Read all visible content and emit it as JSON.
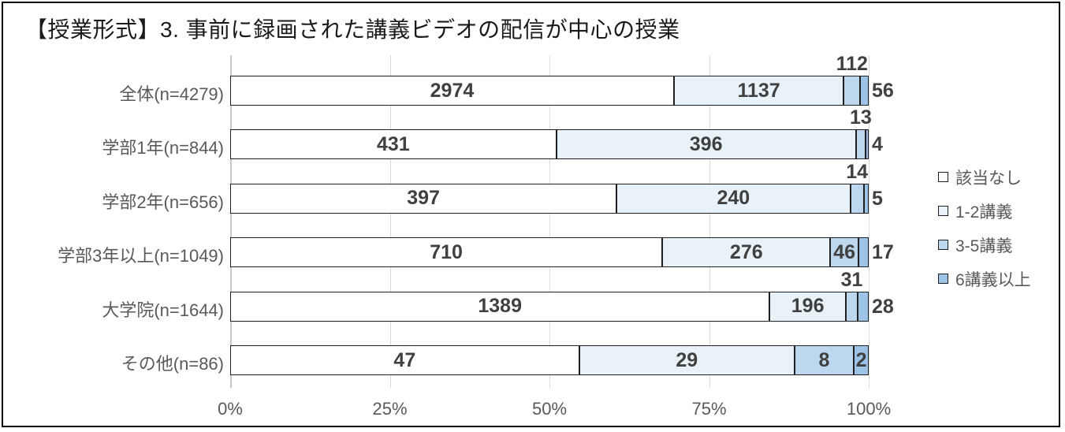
{
  "title": "【授業形式】3. 事前に録画された講義ビデオの配信が中心の授業",
  "chart_data": {
    "type": "bar",
    "variant": "horizontal-stacked-100percent",
    "title": "【授業形式】3. 事前に録画された講義ビデオの配信が中心の授業",
    "categories": [
      "全体(n=4279)",
      "学部1年(n=844)",
      "学部2年(n=656)",
      "学部3年以上(n=1049)",
      "大学院(n=1644)",
      "その他(n=86)"
    ],
    "row_totals": [
      4279,
      844,
      656,
      1049,
      1644,
      86
    ],
    "series": [
      {
        "name": "該当なし",
        "color": "#ffffff",
        "values": [
          2974,
          431,
          397,
          710,
          1389,
          47
        ]
      },
      {
        "name": "1-2講義",
        "color": "#e9f1f9",
        "values": [
          1137,
          396,
          240,
          276,
          196,
          29
        ]
      },
      {
        "name": "3-5講義",
        "color": "#bdd7ee",
        "values": [
          112,
          13,
          14,
          46,
          31,
          8
        ]
      },
      {
        "name": "6講義以上",
        "color": "#9dc3e6",
        "values": [
          56,
          4,
          5,
          17,
          28,
          2
        ]
      }
    ],
    "x_ticks": [
      "0%",
      "25%",
      "50%",
      "75%",
      "100%"
    ],
    "xlim": [
      0,
      100
    ],
    "grid": "vertical",
    "legend_position": "right",
    "legend": [
      "該当なし",
      "1-2講義",
      "3-5講義",
      "6講義以上"
    ]
  },
  "style": {
    "segment_border": "#1f1f1f",
    "value_label_color": "#404040",
    "axis_text_color": "#595959",
    "grid_color": "#d9d9d9",
    "title_color": "#1a1a1a",
    "background": "#ffffff",
    "frame_border": "#000000"
  }
}
